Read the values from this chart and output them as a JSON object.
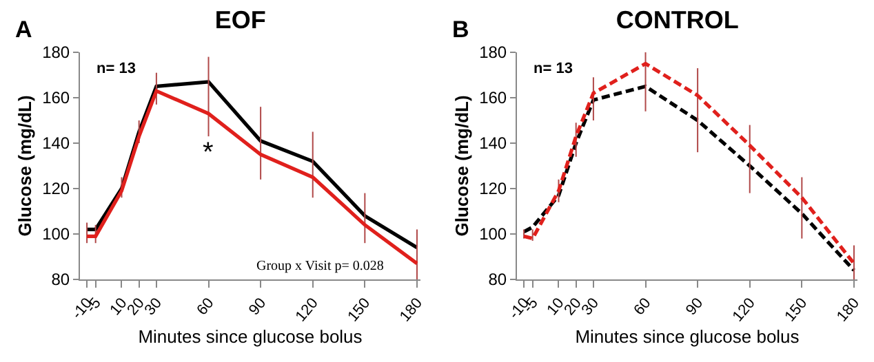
{
  "chart_data": [
    {
      "type": "line",
      "title": "EOF",
      "xlabel": "Minutes since glucose bolus",
      "ylabel": "Glucose (mg/dL)",
      "line_style": "solid",
      "x": [
        -10,
        -5,
        10,
        20,
        30,
        60,
        90,
        120,
        150,
        180
      ],
      "xlim": [
        -14,
        182
      ],
      "xticks": [
        -10,
        -5,
        10,
        20,
        30,
        60,
        90,
        120,
        150,
        180
      ],
      "ylim": [
        80,
        180
      ],
      "yticks": [
        80,
        100,
        120,
        140,
        160,
        180
      ],
      "series": [
        {
          "color": "#000000",
          "values": [
            102,
            102,
            120,
            145,
            165,
            167,
            141,
            132,
            108,
            94
          ]
        },
        {
          "color": "#e0201c",
          "values": [
            99,
            99,
            119,
            143,
            163,
            153,
            135,
            125,
            104,
            87
          ],
          "errors": [
            [
              96,
              105
            ],
            [
              96,
              104
            ],
            [
              116,
              125
            ],
            [
              140,
              150
            ],
            [
              157,
              171
            ],
            [
              143,
              178
            ],
            [
              124,
              156
            ],
            [
              116,
              145
            ],
            [
              96,
              118
            ],
            [
              80,
              102
            ]
          ]
        }
      ],
      "annotations": [
        "A",
        "n= 13",
        "Group x Visit p= 0.028",
        "*"
      ]
    },
    {
      "type": "line",
      "title": "CONTROL",
      "xlabel": "Minutes since glucose bolus",
      "ylabel": "Glucose (mg/dL)",
      "line_style": "dashed",
      "x": [
        -10,
        -5,
        10,
        20,
        30,
        60,
        90,
        120,
        150,
        180
      ],
      "xlim": [
        -14,
        182
      ],
      "xticks": [
        -10,
        -5,
        10,
        20,
        30,
        60,
        90,
        120,
        150,
        180
      ],
      "ylim": [
        80,
        180
      ],
      "yticks": [
        80,
        100,
        120,
        140,
        160,
        180
      ],
      "series": [
        {
          "color": "#000000",
          "values": [
            101,
            103,
            117,
            140,
            159,
            165,
            150,
            130,
            109,
            84
          ]
        },
        {
          "color": "#e0201c",
          "values": [
            99,
            98,
            119,
            143,
            162,
            175,
            161,
            139,
            116,
            87
          ],
          "errors": [
            [
              98,
              102
            ],
            [
              97,
              102
            ],
            [
              114,
              124
            ],
            [
              134,
              149
            ],
            [
              150,
              169
            ],
            [
              154,
              180
            ],
            [
              136,
              173
            ],
            [
              118,
              148
            ],
            [
              98,
              125
            ],
            [
              80,
              95
            ]
          ]
        }
      ],
      "annotations": [
        "B",
        "n= 13"
      ]
    }
  ]
}
